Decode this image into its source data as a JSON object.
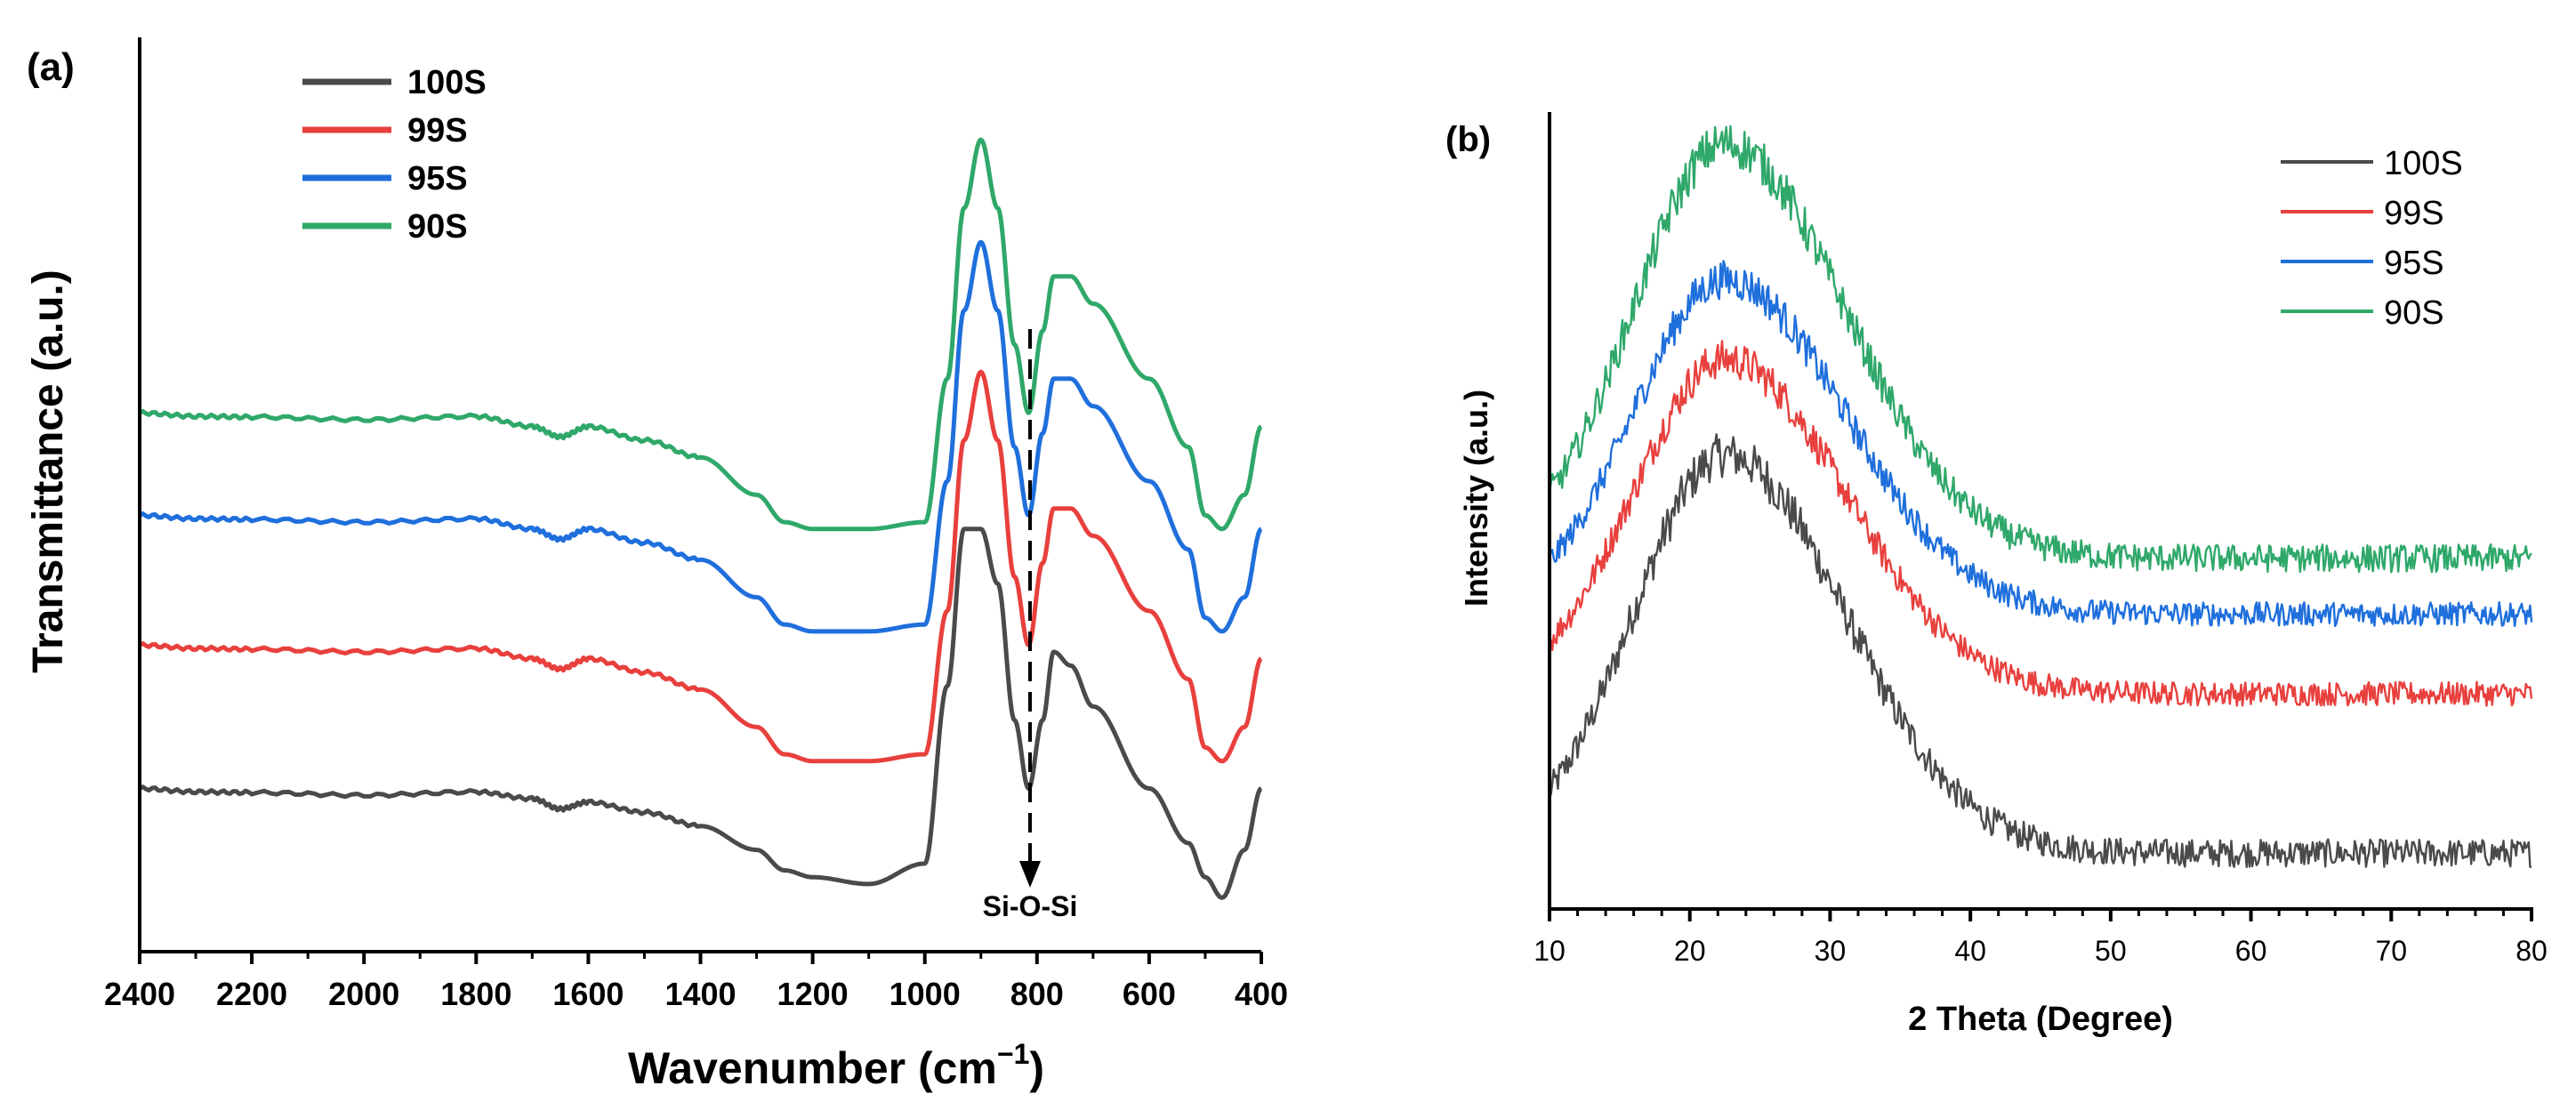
{
  "colors": {
    "100S": "#4a4a4a",
    "99S": "#e8403d",
    "95S": "#1f6fdc",
    "90S": "#2fa86a",
    "axis": "#000000"
  },
  "chart_data": [
    {
      "panel": "(a)",
      "type": "line",
      "xlabel": "Wavenumber (cm",
      "xlabel_sup": "−1",
      "xlabel_close": ")",
      "ylabel": "Transmittance (a.u.)",
      "xlim": [
        2400,
        400
      ],
      "x_reversed": true,
      "yticks_shown": false,
      "xticks": [
        "2400",
        "2200",
        "2000",
        "1800",
        "1600",
        "1400",
        "1200",
        "1000",
        "800",
        "600",
        "400"
      ],
      "annotation": {
        "text": "Si-O-Si",
        "x": 815
      },
      "legend": {
        "placement": "top-left",
        "entries": [
          "100S",
          "99S",
          "95S",
          "90S"
        ]
      },
      "series": [
        {
          "name": "100S",
          "offset": 0,
          "x": [
            2400,
            2300,
            2200,
            2000,
            1800,
            1700,
            1650,
            1600,
            1500,
            1400,
            1300,
            1250,
            1200,
            1100,
            1000,
            960,
            930,
            900,
            870,
            840,
            815,
            790,
            770,
            740,
            700,
            600,
            530,
            500,
            470,
            430,
            400
          ],
          "y": [
            0.1,
            0.095,
            0.094,
            0.09,
            0.095,
            0.085,
            0.07,
            0.08,
            0.065,
            0.045,
            0.01,
            -0.02,
            -0.03,
            -0.04,
            -0.01,
            0.25,
            0.48,
            0.48,
            0.4,
            0.2,
            0.1,
            0.2,
            0.3,
            0.28,
            0.22,
            0.1,
            0.02,
            -0.03,
            -0.06,
            0.01,
            0.1
          ]
        },
        {
          "name": "99S",
          "offset": 0.21,
          "x": [
            2400,
            2300,
            2200,
            2000,
            1800,
            1700,
            1650,
            1600,
            1500,
            1400,
            1300,
            1250,
            1200,
            1100,
            1000,
            960,
            930,
            900,
            870,
            840,
            815,
            790,
            770,
            740,
            700,
            600,
            530,
            500,
            470,
            430,
            400
          ],
          "y": [
            0.1,
            0.095,
            0.094,
            0.09,
            0.095,
            0.08,
            0.065,
            0.08,
            0.06,
            0.035,
            -0.02,
            -0.06,
            -0.07,
            -0.07,
            -0.06,
            0.15,
            0.4,
            0.5,
            0.4,
            0.2,
            0.1,
            0.22,
            0.3,
            0.3,
            0.26,
            0.15,
            0.05,
            -0.05,
            -0.07,
            -0.02,
            0.08
          ]
        },
        {
          "name": "95S",
          "offset": 0.4,
          "x": [
            2400,
            2300,
            2200,
            2000,
            1800,
            1700,
            1650,
            1600,
            1500,
            1400,
            1300,
            1250,
            1200,
            1100,
            1000,
            960,
            930,
            900,
            870,
            840,
            815,
            790,
            770,
            740,
            700,
            600,
            530,
            500,
            470,
            430,
            400
          ],
          "y": [
            0.1,
            0.095,
            0.094,
            0.09,
            0.095,
            0.08,
            0.065,
            0.08,
            0.06,
            0.035,
            -0.02,
            -0.06,
            -0.07,
            -0.07,
            -0.06,
            0.15,
            0.4,
            0.5,
            0.4,
            0.2,
            0.1,
            0.22,
            0.3,
            0.3,
            0.26,
            0.15,
            0.05,
            -0.05,
            -0.07,
            -0.02,
            0.08
          ]
        },
        {
          "name": "90S",
          "offset": 0.55,
          "x": [
            2400,
            2300,
            2200,
            2000,
            1800,
            1700,
            1650,
            1600,
            1500,
            1400,
            1300,
            1250,
            1200,
            1100,
            1000,
            960,
            930,
            900,
            870,
            840,
            815,
            790,
            770,
            740,
            700,
            600,
            530,
            500,
            470,
            430,
            400
          ],
          "y": [
            0.1,
            0.095,
            0.094,
            0.09,
            0.095,
            0.08,
            0.065,
            0.08,
            0.06,
            0.035,
            -0.02,
            -0.06,
            -0.07,
            -0.07,
            -0.06,
            0.15,
            0.4,
            0.5,
            0.4,
            0.2,
            0.1,
            0.22,
            0.3,
            0.3,
            0.26,
            0.15,
            0.05,
            -0.05,
            -0.07,
            -0.02,
            0.08
          ]
        }
      ]
    },
    {
      "panel": "(b)",
      "type": "line",
      "xlabel": "2 Theta (Degree)",
      "ylabel": "Intensity (a.u.)",
      "xlim": [
        10,
        80
      ],
      "yticks_shown": false,
      "xticks": [
        "10",
        "20",
        "30",
        "40",
        "50",
        "60",
        "70",
        "80"
      ],
      "legend": {
        "placement": "top-right",
        "entries": [
          "100S",
          "99S",
          "95S",
          "90S"
        ]
      },
      "peak_center": 22.5,
      "series": [
        {
          "name": "100S",
          "baseline": 0.07,
          "peak_height": 0.5,
          "noise": 0.035
        },
        {
          "name": "99S",
          "baseline": 0.27,
          "peak_height": 0.42,
          "noise": 0.03
        },
        {
          "name": "95S",
          "baseline": 0.37,
          "peak_height": 0.42,
          "noise": 0.03
        },
        {
          "name": "90S",
          "baseline": 0.44,
          "peak_height": 0.52,
          "noise": 0.035
        }
      ]
    }
  ]
}
